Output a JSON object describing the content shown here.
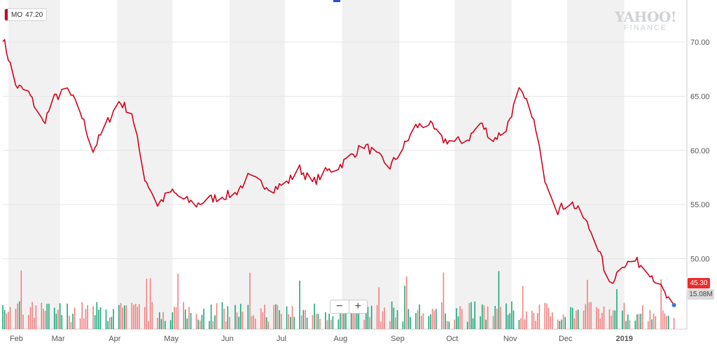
{
  "badge": {
    "ticker": "MO",
    "price": "47.20"
  },
  "watermark": {
    "line1": "YAHOO!",
    "line2": "FINANCE"
  },
  "zoom": {
    "minus": "−",
    "plus": "+"
  },
  "price_tag": "45.30",
  "volume_tag": "15.08M",
  "colors": {
    "line": "#d0021b",
    "volume_up": "#1ca87a",
    "volume_down": "#f08080",
    "band": "#f1f1f1",
    "grid": "#e6e6e6"
  },
  "chart_data": {
    "type": "line",
    "symbol": "MO",
    "x_tick_labels": [
      "Feb",
      "Mar",
      "Apr",
      "May",
      "Jun",
      "Jul",
      "Aug",
      "Sep",
      "Oct",
      "Nov",
      "Dec",
      "2019"
    ],
    "y_tick_labels": [
      "50.00",
      "55.00",
      "60.00",
      "65.00",
      "70.00"
    ],
    "ylim": [
      43.5,
      73.5
    ],
    "grid": true,
    "series": [
      {
        "name": "MO",
        "x": [
          "2018-01-29",
          "2018-02-05",
          "2018-02-12",
          "2018-02-20",
          "2018-02-26",
          "2018-03-05",
          "2018-03-12",
          "2018-03-19",
          "2018-03-26",
          "2018-04-02",
          "2018-04-09",
          "2018-04-16",
          "2018-04-23",
          "2018-04-30",
          "2018-05-07",
          "2018-05-14",
          "2018-05-21",
          "2018-05-29",
          "2018-06-04",
          "2018-06-11",
          "2018-06-18",
          "2018-06-25",
          "2018-07-02",
          "2018-07-09",
          "2018-07-16",
          "2018-07-23",
          "2018-07-30",
          "2018-08-06",
          "2018-08-13",
          "2018-08-20",
          "2018-08-27",
          "2018-09-04",
          "2018-09-10",
          "2018-09-17",
          "2018-09-24",
          "2018-10-01",
          "2018-10-08",
          "2018-10-15",
          "2018-10-22",
          "2018-10-29",
          "2018-11-05",
          "2018-11-12",
          "2018-11-19",
          "2018-11-26",
          "2018-12-03",
          "2018-12-10",
          "2018-12-17",
          "2018-12-24",
          "2018-12-31",
          "2019-01-07",
          "2019-01-14",
          "2019-01-22",
          "2019-01-28"
        ],
        "values": [
          70.5,
          66.0,
          65.3,
          62.5,
          64.8,
          65.6,
          63.6,
          60.0,
          62.4,
          64.5,
          63.5,
          57.5,
          55.0,
          56.2,
          55.5,
          55.0,
          55.5,
          55.8,
          56.0,
          57.5,
          57.0,
          56.5,
          57.0,
          58.3,
          57.0,
          58.0,
          58.5,
          59.5,
          60.5,
          59.5,
          58.5,
          60.5,
          62.2,
          62.5,
          61.0,
          60.8,
          61.0,
          62.5,
          61.0,
          62.0,
          65.5,
          63.5,
          57.5,
          54.5,
          55.3,
          53.8,
          51.5,
          47.5,
          49.5,
          49.8,
          49.0,
          47.0,
          45.3
        ]
      }
    ],
    "volume_tag": "15.08M",
    "last_price": "45.30"
  }
}
